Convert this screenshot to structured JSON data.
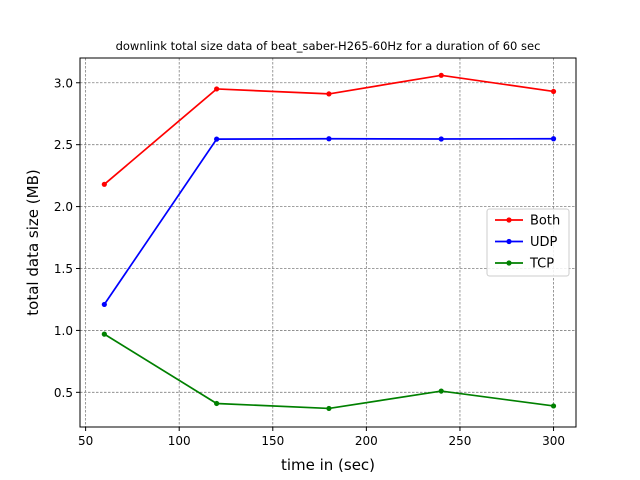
{
  "chart_data": {
    "type": "line",
    "title": "downlink total size data of beat_saber-H265-60Hz for a duration of 60 sec",
    "xlabel": "time in (sec)",
    "ylabel": "total data size (MB)",
    "x": [
      60,
      120,
      180,
      240,
      300
    ],
    "xlim": [
      47,
      312
    ],
    "ylim": [
      0.22,
      3.2
    ],
    "xticks": [
      50,
      100,
      150,
      200,
      250,
      300
    ],
    "xtick_labels": [
      "50",
      "100",
      "150",
      "200",
      "250",
      "300"
    ],
    "yticks": [
      0.5,
      1.0,
      1.5,
      2.0,
      2.5,
      3.0
    ],
    "ytick_labels": [
      "0.5",
      "1.0",
      "1.5",
      "2.0",
      "2.5",
      "3.0"
    ],
    "grid": true,
    "legend_position": "center-right",
    "series": [
      {
        "name": "Both",
        "color": "#ff0000",
        "values": [
          2.18,
          2.95,
          2.91,
          3.06,
          2.93
        ]
      },
      {
        "name": "UDP",
        "color": "#0000ff",
        "values": [
          1.21,
          2.545,
          2.548,
          2.546,
          2.548
        ]
      },
      {
        "name": "TCP",
        "color": "#008000",
        "values": [
          0.97,
          0.41,
          0.37,
          0.51,
          0.39
        ]
      }
    ]
  }
}
